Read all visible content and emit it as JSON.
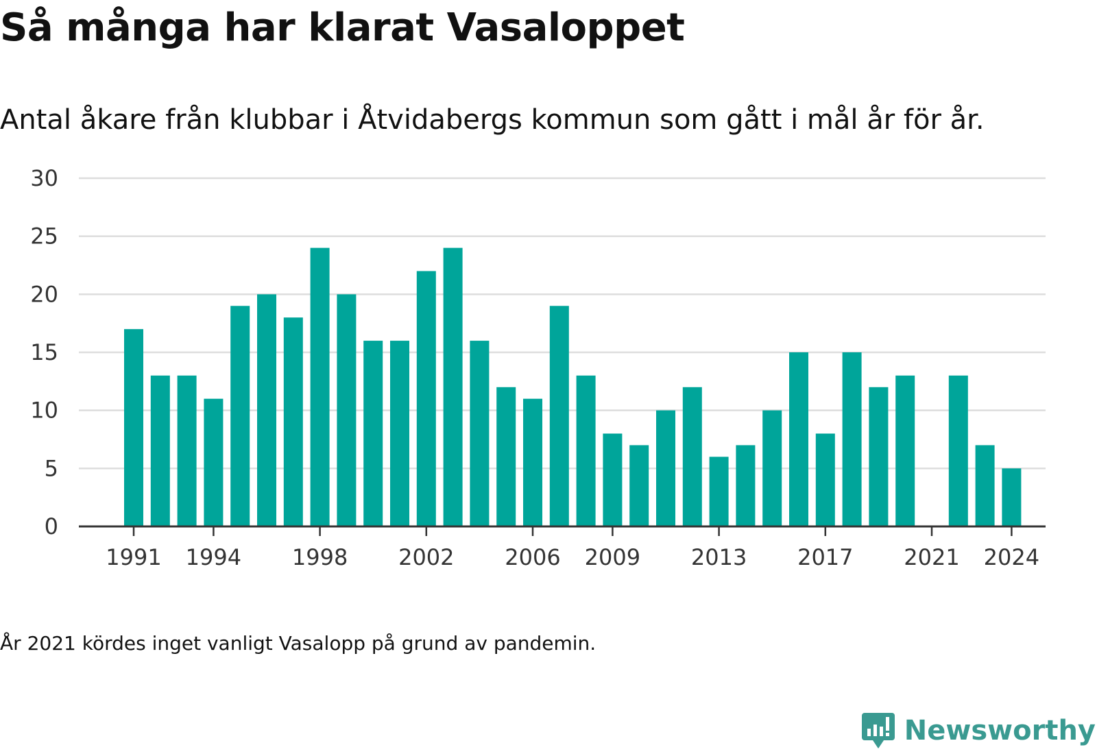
{
  "title": "Så många har klarat Vasaloppet",
  "subtitle": "Antal åkare från klubbar i Åtvidabergs kommun som gått i mål år för år.",
  "note": "År 2021 kördes inget vanligt Vasalopp på grund av pandemin.",
  "brand": {
    "name": "Newsworthy",
    "color": "#3a9a91"
  },
  "colors": {
    "bar": "#00a59a",
    "grid": "#dddddd",
    "axis": "#333333"
  },
  "chart_data": {
    "type": "bar",
    "title": "Så många har klarat Vasaloppet",
    "subtitle": "Antal åkare från klubbar i Åtvidabergs kommun som gått i mål år för år.",
    "xlabel": "",
    "ylabel": "",
    "ylim": [
      0,
      30
    ],
    "yticks": [
      "0",
      "5",
      "10",
      "15",
      "20",
      "25",
      "30"
    ],
    "xtick_labels": [
      "1991",
      "1994",
      "1998",
      "2002",
      "2006",
      "2009",
      "2013",
      "2017",
      "2021",
      "2024"
    ],
    "grid": "horizontal",
    "legend": "none",
    "categories": [
      1991,
      1992,
      1993,
      1994,
      1995,
      1996,
      1997,
      1998,
      1999,
      2000,
      2001,
      2002,
      2003,
      2004,
      2005,
      2006,
      2007,
      2008,
      2009,
      2010,
      2011,
      2012,
      2013,
      2014,
      2015,
      2016,
      2017,
      2018,
      2019,
      2020,
      2021,
      2022,
      2023,
      2024
    ],
    "values": [
      17,
      13,
      13,
      11,
      19,
      20,
      18,
      24,
      20,
      16,
      16,
      22,
      24,
      16,
      12,
      11,
      19,
      13,
      8,
      7,
      10,
      12,
      6,
      7,
      10,
      15,
      8,
      15,
      12,
      13,
      null,
      13,
      7,
      5
    ]
  }
}
